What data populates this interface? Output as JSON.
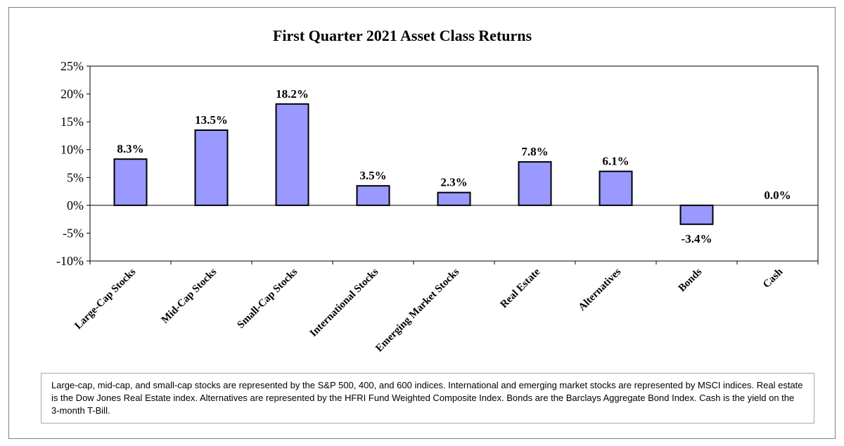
{
  "chart_data": {
    "type": "bar",
    "title": "First Quarter 2021 Asset Class Returns",
    "categories": [
      "Large-Cap Stocks",
      "Mid-Cap Stocks",
      "Small-Cap Stocks",
      "International Stocks",
      "Emerging Market Stocks",
      "Real Estate",
      "Alternatives",
      "Bonds",
      "Cash"
    ],
    "values": [
      8.3,
      13.5,
      18.2,
      3.5,
      2.3,
      7.8,
      6.1,
      -3.4,
      0.0
    ],
    "data_labels": [
      "8.3%",
      "13.5%",
      "18.2%",
      "3.5%",
      "2.3%",
      "7.8%",
      "6.1%",
      "-3.4%",
      "0.0%"
    ],
    "ylim": [
      -10,
      25
    ],
    "yticks": [
      25,
      20,
      15,
      10,
      5,
      0,
      -5,
      -10
    ],
    "ytick_labels": [
      "25%",
      "20%",
      "15%",
      "10%",
      "5%",
      "0%",
      "-5%",
      "-10%"
    ],
    "xlabel": "",
    "ylabel": "",
    "grid": false,
    "bar_color": "#9999ff",
    "bar_edge_color": "#000000"
  },
  "footnote": "Large-cap, mid-cap, and small-cap stocks are represented by the S&P 500, 400, and 600 indices.  International and emerging market stocks are represented by MSCI indices.  Real estate is the Dow Jones Real Estate index.  Alternatives are represented by the HFRI Fund Weighted Composite Index.  Bonds are the Barclays Aggregate Bond Index.  Cash is the yield on the 3-month T-Bill."
}
